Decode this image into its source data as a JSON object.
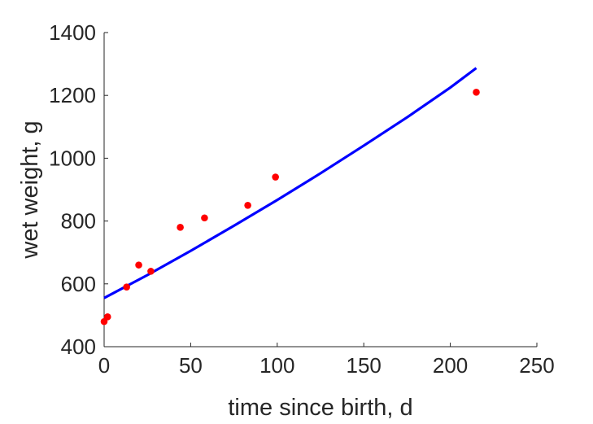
{
  "chart_data": {
    "type": "scatter",
    "title": "",
    "xlabel": "time since birth, d",
    "ylabel": "wet weight, g",
    "xlim": [
      0,
      250
    ],
    "ylim": [
      400,
      1400
    ],
    "xticks": [
      0,
      50,
      100,
      150,
      200,
      250
    ],
    "yticks": [
      400,
      600,
      800,
      1000,
      1200,
      1400
    ],
    "grid": false,
    "box": false,
    "series": [
      {
        "type": "scatter",
        "color": "#ff0000",
        "x": [
          0,
          2,
          13,
          20,
          27,
          44,
          58,
          83,
          99,
          215
        ],
        "y": [
          480,
          495,
          590,
          660,
          640,
          780,
          810,
          850,
          940,
          1210
        ]
      },
      {
        "type": "line",
        "color": "#0000ff",
        "x": [
          0,
          25,
          50,
          75,
          100,
          125,
          150,
          175,
          200,
          215
        ],
        "y": [
          555,
          628,
          705,
          785,
          867,
          952,
          1040,
          1130,
          1225,
          1287
        ]
      }
    ]
  }
}
